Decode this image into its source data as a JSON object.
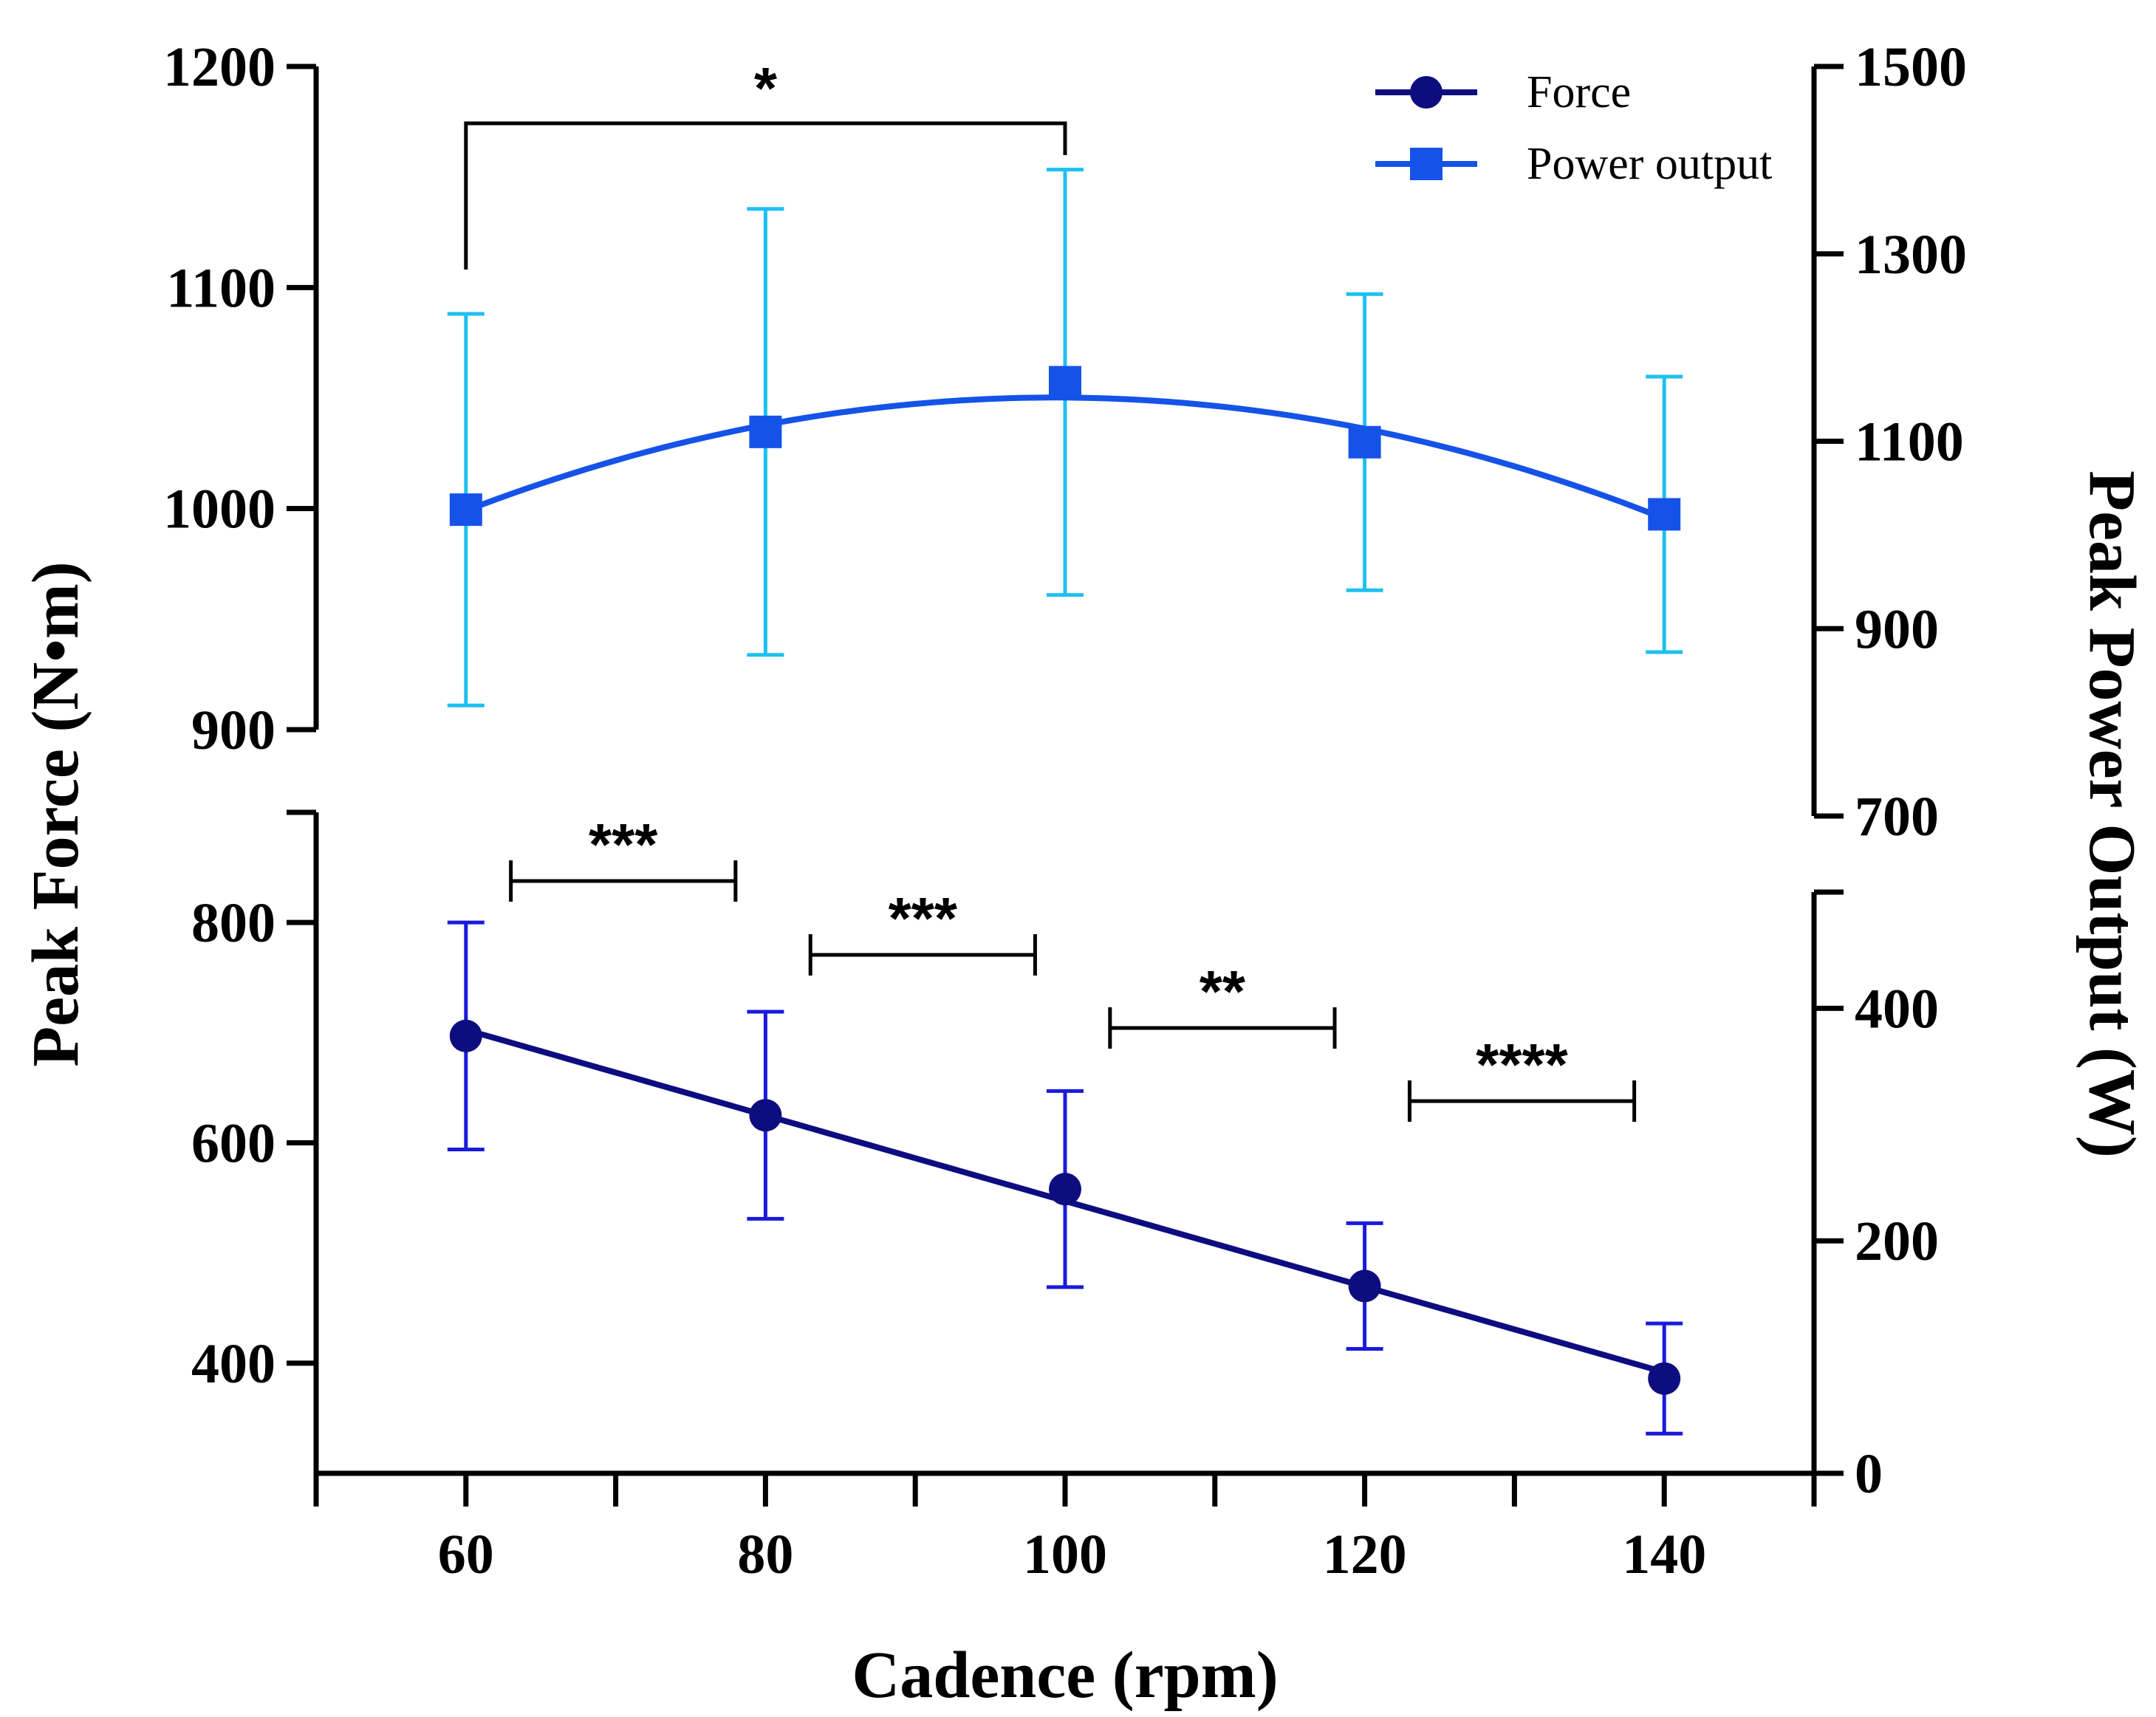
{
  "chart_data": {
    "type": "line",
    "xlabel": "Cadence (rpm)",
    "ylabel_left": "Peak Force (N•m)",
    "ylabel_right": "Peak Power Output (W)",
    "x_ticks": [
      "60",
      "80",
      "100",
      "120",
      "140"
    ],
    "xlim": [
      50,
      150
    ],
    "left_axis": {
      "upper_segment": {
        "range": [
          900,
          1200
        ],
        "ticks": [
          "900",
          "1000",
          "1100",
          "1200"
        ]
      },
      "lower_segment": {
        "range": [
          300,
          900
        ],
        "ticks": [
          "400",
          "600",
          "800"
        ]
      }
    },
    "right_axis": {
      "upper_segment": {
        "range": [
          700,
          1500
        ],
        "ticks": [
          "700",
          "900",
          "1100",
          "1300",
          "1500"
        ]
      },
      "lower_segment": {
        "range": [
          0,
          500
        ],
        "ticks": [
          "0",
          "200",
          "400"
        ]
      }
    },
    "series": [
      {
        "name": "Force",
        "axis": "left",
        "marker": "circle",
        "color": "#0d0d80",
        "error_color": "#1a1adc",
        "x": [
          60,
          80,
          100,
          120,
          140
        ],
        "y": [
          697,
          625,
          558,
          470,
          386
        ],
        "error": [
          103,
          94,
          89,
          57,
          50
        ],
        "fit": "linear"
      },
      {
        "name": "Power output",
        "axis": "right",
        "marker": "square",
        "color": "#1553e8",
        "error_color": "#1ec0f0",
        "x": [
          60,
          80,
          100,
          120,
          140
        ],
        "y": [
          1027,
          1110,
          1163,
          1099,
          1022
        ],
        "error": [
          209,
          238,
          227,
          158,
          147
        ],
        "fit": "quadratic"
      }
    ],
    "significance": [
      {
        "label": "*",
        "x1": 60,
        "x2": 100
      },
      {
        "label": "***",
        "x1": 63,
        "x2": 78
      },
      {
        "label": "***",
        "x1": 83,
        "x2": 98
      },
      {
        "label": "**",
        "x1": 103,
        "x2": 118
      },
      {
        "label": "****",
        "x1": 123,
        "x2": 138
      }
    ],
    "legend_position": "top-right"
  }
}
